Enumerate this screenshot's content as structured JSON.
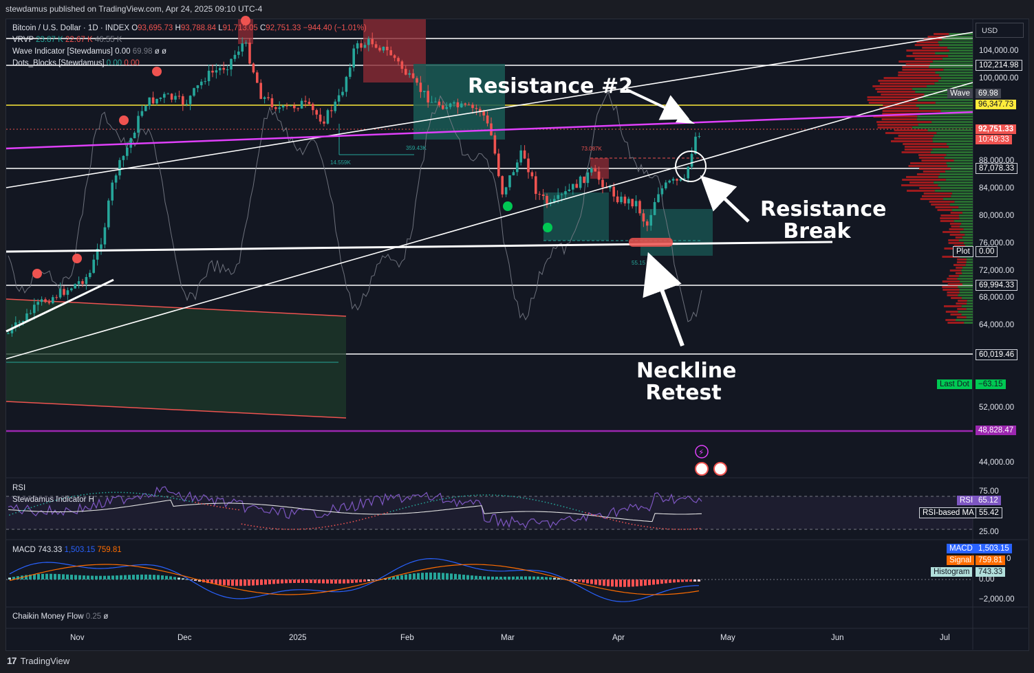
{
  "publisher_line": "stewdamus published on TradingView.com, Apr 24, 2025 09:10 UTC-4",
  "footer_brand": "TradingView",
  "currency": "USD",
  "legend": {
    "symbol": "Bitcoin / U.S. Dollar · 1D · INDEX",
    "o_label": "O",
    "o_val": "93,695.73",
    "h_label": "H",
    "h_val": "93,788.84",
    "l_label": "L",
    "l_val": "91,713.05",
    "c_label": "C",
    "c_val": "92,751.33",
    "change": "−944.40 (−1.01%)",
    "vrvp_label": "VRVP",
    "vrvp_v1": "23.87 K",
    "vrvp_v2": "22.67 K",
    "vrvp_v3": "46.55 K",
    "wave_label": "Wave Indicator [Stewdamus]",
    "wave_v1": "0.00",
    "wave_v2": "69.98",
    "wave_v3": "ø",
    "wave_v4": "ø",
    "dots_label": "Dots_Blocks [Stewdamus]",
    "dots_v1": "0.00",
    "dots_v2": "0.00"
  },
  "price_axis": [
    "104,000.00",
    "100,000.00",
    "88,000.00",
    "84,000.00",
    "80,000.00",
    "76,000.00",
    "72,000.00",
    "68,000.00",
    "64,000.00",
    "52,000.00",
    "44,000.00"
  ],
  "price_tags": {
    "p102": "102,214.98",
    "wave_label": "Wave",
    "wave_val": "69.98",
    "p96": "96,347.73",
    "last": "92,751.33",
    "countdown": "10:49:33",
    "p87": "87,078.33",
    "plot_label": "Plot",
    "plot_val": "0.00",
    "p69": "69,994.33",
    "p60": "60,019.46",
    "lastdot_label": "Last Dot",
    "lastdot_val": "−63.15",
    "p48": "48,828.47"
  },
  "time_axis": [
    "Nov",
    "Dec",
    "2025",
    "Feb",
    "Mar",
    "Apr",
    "May",
    "Jun",
    "Jul"
  ],
  "annotations": {
    "resistance2": "Resistance #2",
    "break_l1": "Resistance",
    "break_l2": "Break",
    "neck_l1": "Neckline",
    "neck_l2": "Retest"
  },
  "small_labels": {
    "v1": "359.43K",
    "v2": "14.559K",
    "v3": "73.087K",
    "v4": "55.15"
  },
  "rsi": {
    "title": "RSI",
    "sub": "Stewdamus Indicator H",
    "axis_top": "75.00",
    "axis_bottom": "25.00",
    "tag_label": "RSI",
    "tag_val": "65.12",
    "ma_label": "RSI-based MA",
    "ma_val": "55.42"
  },
  "macd": {
    "title": "MACD",
    "v1": "743.33",
    "v2": "1,503.15",
    "v3": "759.81",
    "axis_zero": "0.00",
    "axis_neg": "−2,000.00",
    "axis_partial": "0",
    "macd_label": "MACD",
    "macd_val": "1,503.15",
    "signal_label": "Signal",
    "signal_val": "759.81",
    "hist_label": "Histogram",
    "hist_val": "743.33"
  },
  "cmf": {
    "title": "Chaikin Money Flow",
    "v1": "0.25",
    "v2": "ø"
  },
  "colors": {
    "up": "#26a69a",
    "down": "#ef5350",
    "magenta": "#e040fb",
    "yellow": "#ffeb3b",
    "purple": "#9c27b0",
    "bg": "#131722"
  },
  "chart_data": {
    "type": "line",
    "title": "Bitcoin / U.S. Dollar · 1D · INDEX",
    "x": [
      "Nov",
      "Dec",
      "2025",
      "Feb",
      "Mar",
      "Apr",
      "May"
    ],
    "series": [
      {
        "values": [
          69000,
          97000,
          94000,
          101000,
          84000,
          82000,
          92751.33
        ]
      }
    ],
    "ylim": [
      42000,
      108000
    ]
  }
}
